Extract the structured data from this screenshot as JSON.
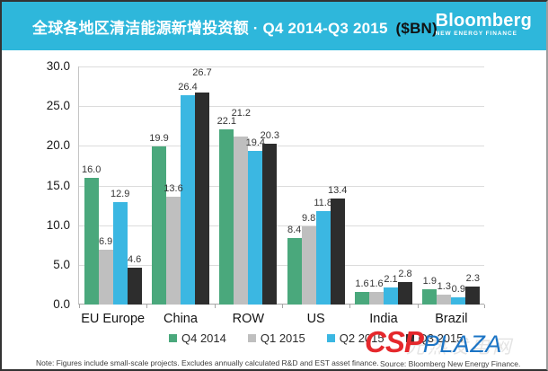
{
  "header": {
    "bg_color": "#2eb7db",
    "title_main": "全球各地区清洁能源新增投资额 · Q4 2014-Q3 2015",
    "title_unit": "($BN)",
    "brand_name": "Bloomberg",
    "brand_sub": "NEW ENERGY FINANCE"
  },
  "chart_data": {
    "type": "bar",
    "title": "全球各地区清洁能源新增投资额 · Q4 2014-Q3 2015 ($BN)",
    "categories": [
      "EU Europe",
      "China",
      "ROW",
      "US",
      "India",
      "Brazil"
    ],
    "series": [
      {
        "name": "Q4 2014",
        "color": "#4aa87c",
        "values": [
          16.0,
          19.9,
          22.1,
          8.4,
          1.6,
          1.9
        ]
      },
      {
        "name": "Q1 2015",
        "color": "#bfbfbf",
        "values": [
          6.9,
          13.6,
          21.2,
          9.8,
          1.6,
          1.3
        ]
      },
      {
        "name": "Q2 2015",
        "color": "#3bb7e2",
        "values": [
          12.9,
          26.4,
          19.4,
          11.8,
          2.1,
          0.9
        ]
      },
      {
        "name": "Q3 2015",
        "color": "#2d2d2d",
        "values": [
          4.6,
          26.7,
          20.3,
          13.4,
          2.8,
          2.3
        ]
      }
    ],
    "ylim": [
      0,
      30
    ],
    "ytick_step": 5,
    "yticks": [
      "30.0",
      "25.0",
      "20.0",
      "15.0",
      "10.0",
      "5.0",
      "0.0"
    ],
    "grid": true,
    "legend_position": "bottom"
  },
  "footer": {
    "note": "Note: Figures include small-scale projects. Excludes annually calculated R&D and EST asset finance.",
    "source": "Source: Bloomberg New Energy Finance."
  },
  "watermark": {
    "part1": "CSP",
    "part2": "PLAZA",
    "faint_cn": "光热发电网",
    "color1": "#e5282c",
    "color2": "#1b74c5"
  }
}
